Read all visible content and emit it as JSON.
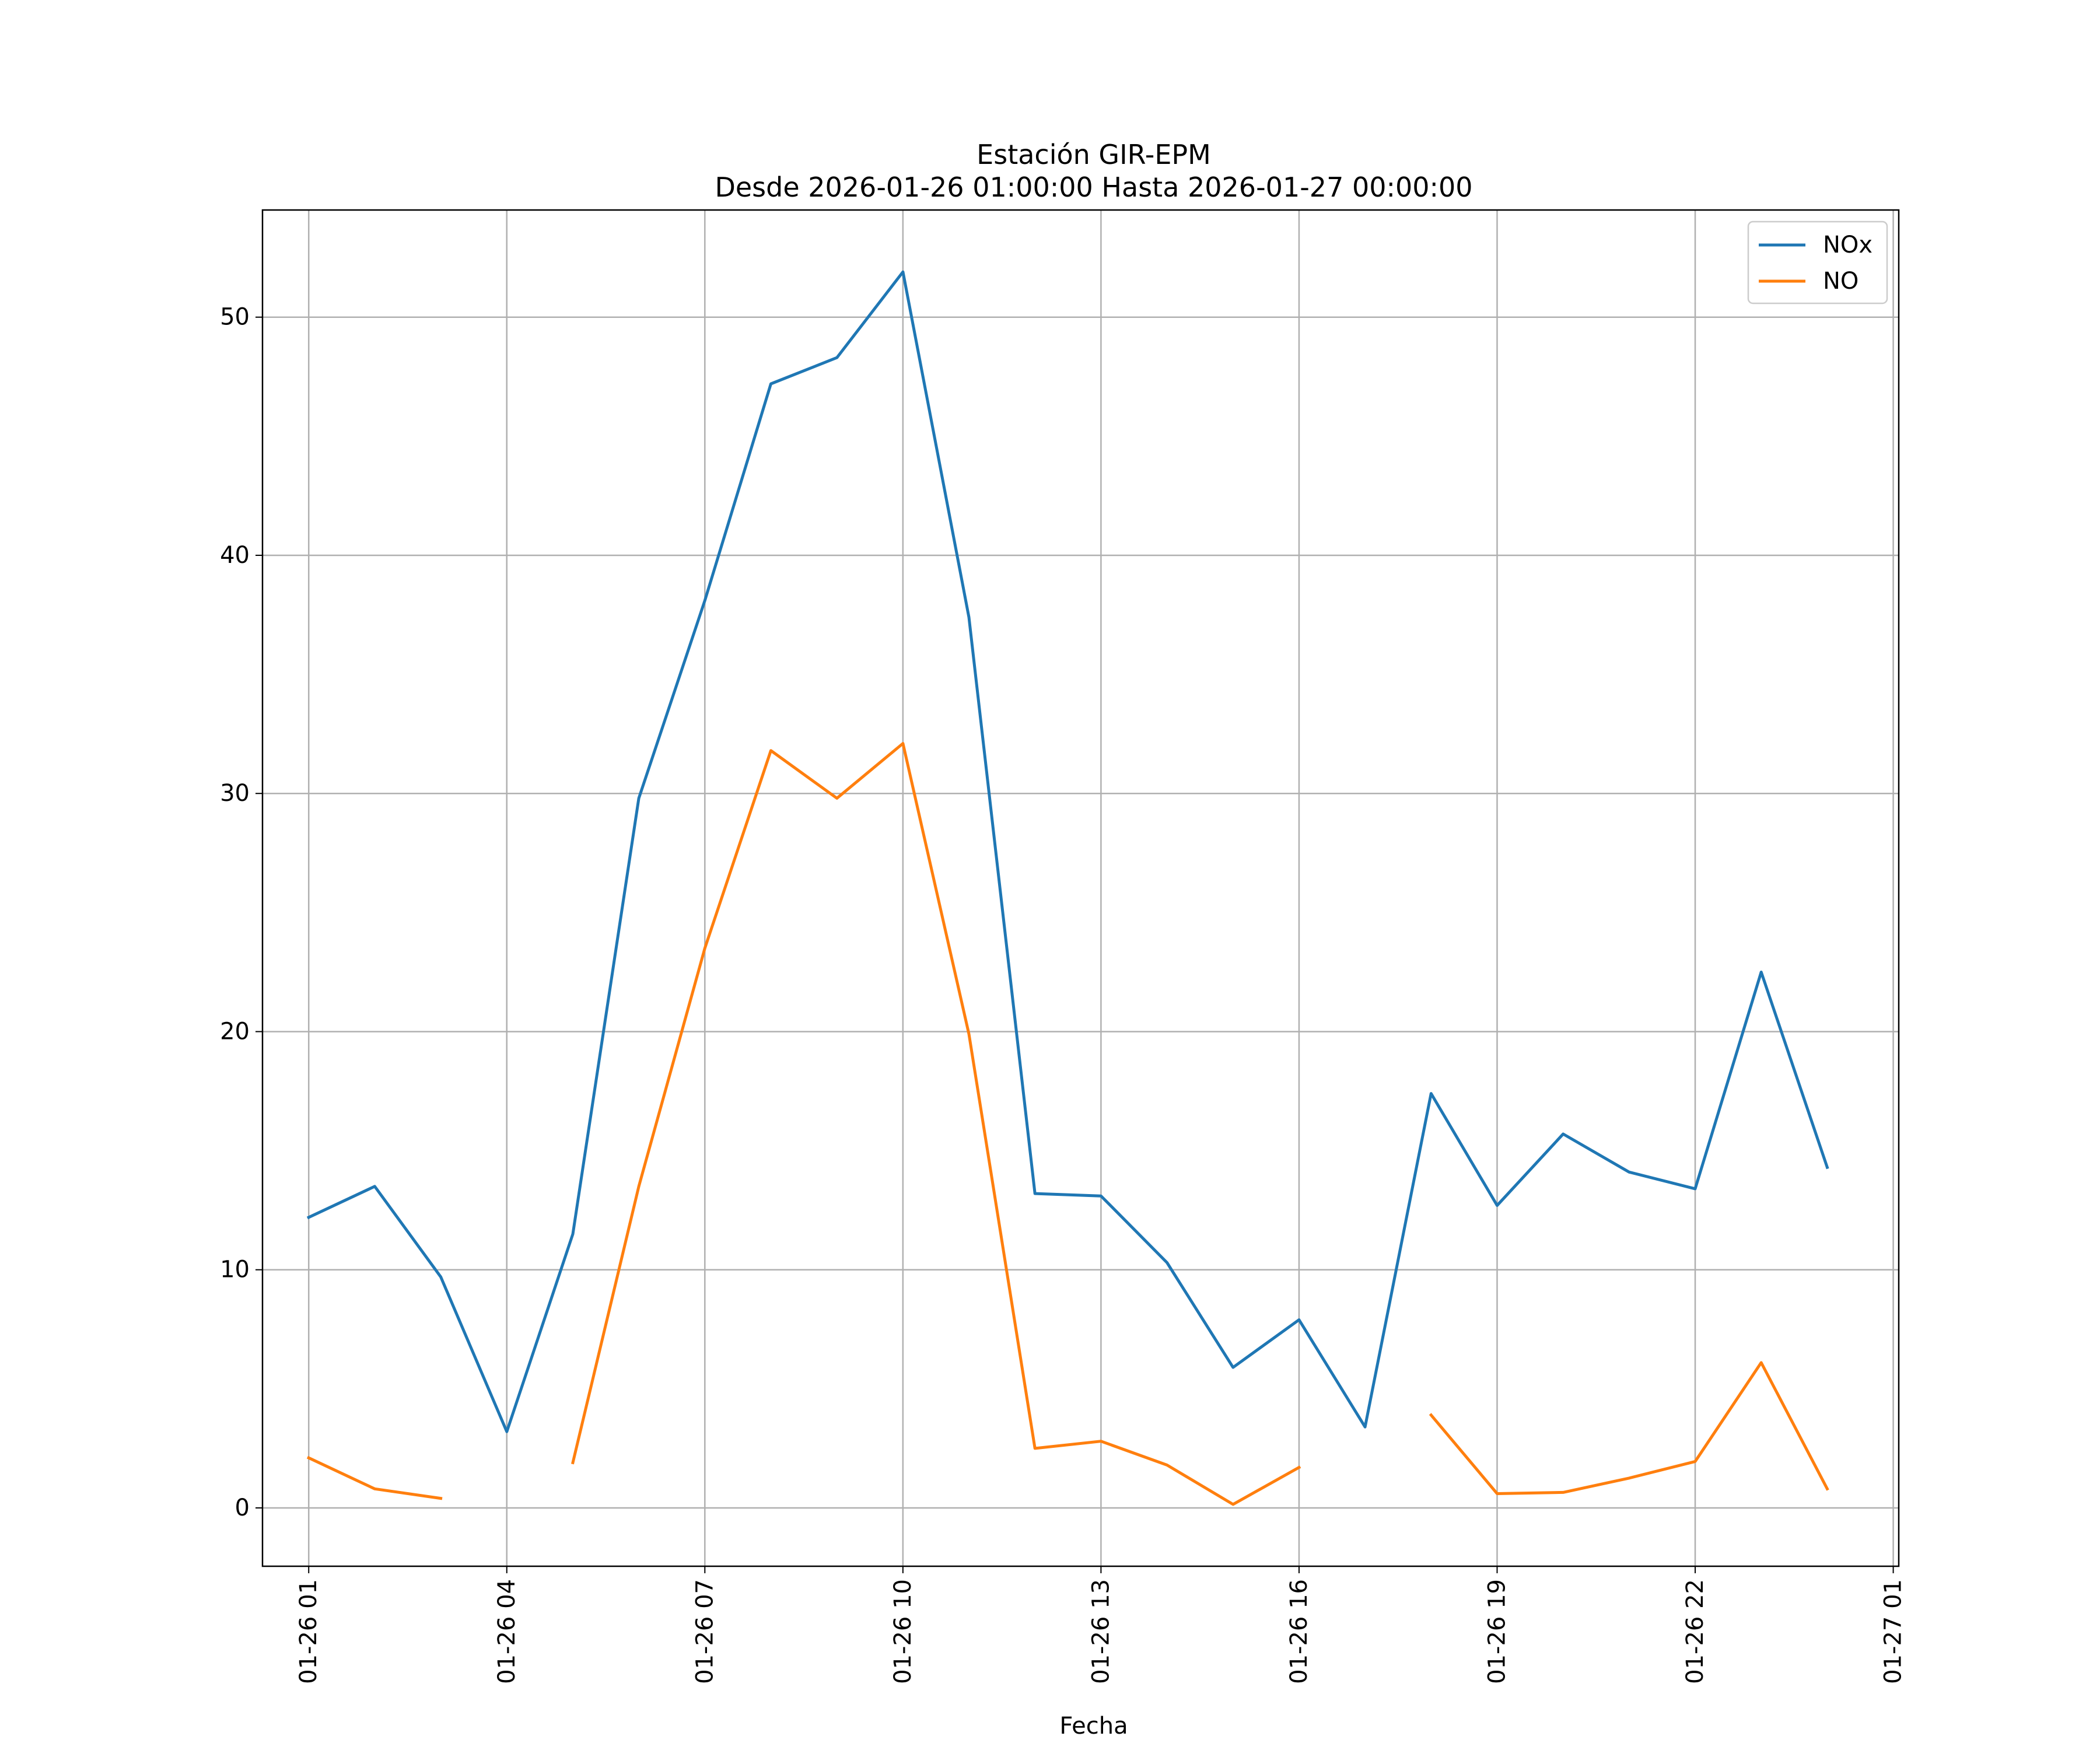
{
  "chart_data": {
    "type": "line",
    "title": "Estación GIR-EPM",
    "subtitle": "Desde 2026-01-26 01:00:00 Hasta 2026-01-27 00:00:00",
    "xlabel": "Fecha",
    "ylabel": "",
    "x": [
      "01-26 01",
      "01-26 02",
      "01-26 03",
      "01-26 04",
      "01-26 05",
      "01-26 06",
      "01-26 07",
      "01-26 08",
      "01-26 09",
      "01-26 10",
      "01-26 11",
      "01-26 12",
      "01-26 13",
      "01-26 14",
      "01-26 15",
      "01-26 16",
      "01-26 17",
      "01-26 18",
      "01-26 19",
      "01-26 20",
      "01-26 21",
      "01-26 22",
      "01-26 23",
      "01-27 00"
    ],
    "xlim": [
      "01-26 00:18",
      "01-27 01:05"
    ],
    "x_ticks": [
      "01-26 01",
      "01-26 04",
      "01-26 07",
      "01-26 10",
      "01-26 13",
      "01-26 16",
      "01-26 19",
      "01-26 22",
      "01-27 01"
    ],
    "ylim": [
      -2.45,
      54.5
    ],
    "y_ticks": [
      0,
      10,
      20,
      30,
      40,
      50
    ],
    "grid": true,
    "legend_position": "top-right",
    "series": [
      {
        "name": "NOx",
        "color": "#1f77b4",
        "values": [
          12.2,
          13.5,
          9.7,
          3.2,
          11.5,
          29.8,
          38.1,
          47.2,
          48.3,
          51.9,
          37.4,
          13.2,
          13.1,
          10.3,
          5.9,
          7.9,
          3.4,
          17.4,
          12.7,
          15.7,
          14.1,
          13.4,
          22.5,
          14.3
        ]
      },
      {
        "name": "NO",
        "color": "#ff7f0e",
        "values": [
          2.1,
          0.8,
          0.4,
          null,
          1.9,
          13.5,
          23.5,
          31.8,
          29.8,
          32.1,
          19.9,
          2.5,
          2.8,
          1.8,
          0.15,
          1.7,
          null,
          3.9,
          0.6,
          0.65,
          1.25,
          1.95,
          6.1,
          0.8
        ]
      }
    ]
  }
}
